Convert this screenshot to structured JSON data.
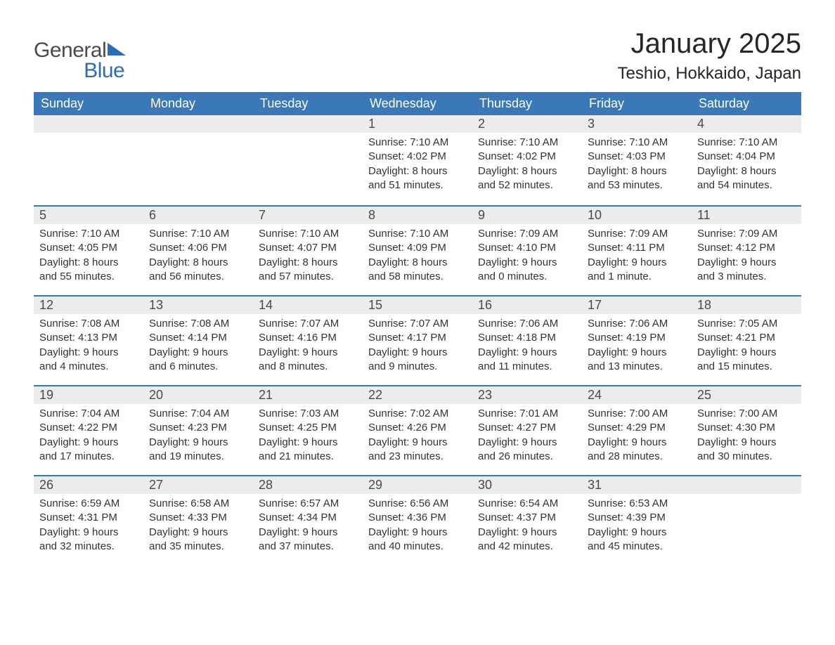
{
  "logo": {
    "general": "General",
    "blue": "Blue"
  },
  "header": {
    "title": "January 2025",
    "location": "Teshio, Hokkaido, Japan"
  },
  "colors": {
    "header_bg": "#3b78b8",
    "header_text": "#ffffff",
    "daynum_bg": "#ececec",
    "row_divider": "#3b78b8",
    "body_text": "#333333",
    "logo_gray": "#4a4a4a",
    "logo_blue": "#2a6db8",
    "page_bg": "#ffffff"
  },
  "weekdays": [
    "Sunday",
    "Monday",
    "Tuesday",
    "Wednesday",
    "Thursday",
    "Friday",
    "Saturday"
  ],
  "weeks": [
    [
      null,
      null,
      null,
      {
        "n": "1",
        "sr": "Sunrise: 7:10 AM",
        "ss": "Sunset: 4:02 PM",
        "d1": "Daylight: 8 hours",
        "d2": "and 51 minutes."
      },
      {
        "n": "2",
        "sr": "Sunrise: 7:10 AM",
        "ss": "Sunset: 4:02 PM",
        "d1": "Daylight: 8 hours",
        "d2": "and 52 minutes."
      },
      {
        "n": "3",
        "sr": "Sunrise: 7:10 AM",
        "ss": "Sunset: 4:03 PM",
        "d1": "Daylight: 8 hours",
        "d2": "and 53 minutes."
      },
      {
        "n": "4",
        "sr": "Sunrise: 7:10 AM",
        "ss": "Sunset: 4:04 PM",
        "d1": "Daylight: 8 hours",
        "d2": "and 54 minutes."
      }
    ],
    [
      {
        "n": "5",
        "sr": "Sunrise: 7:10 AM",
        "ss": "Sunset: 4:05 PM",
        "d1": "Daylight: 8 hours",
        "d2": "and 55 minutes."
      },
      {
        "n": "6",
        "sr": "Sunrise: 7:10 AM",
        "ss": "Sunset: 4:06 PM",
        "d1": "Daylight: 8 hours",
        "d2": "and 56 minutes."
      },
      {
        "n": "7",
        "sr": "Sunrise: 7:10 AM",
        "ss": "Sunset: 4:07 PM",
        "d1": "Daylight: 8 hours",
        "d2": "and 57 minutes."
      },
      {
        "n": "8",
        "sr": "Sunrise: 7:10 AM",
        "ss": "Sunset: 4:09 PM",
        "d1": "Daylight: 8 hours",
        "d2": "and 58 minutes."
      },
      {
        "n": "9",
        "sr": "Sunrise: 7:09 AM",
        "ss": "Sunset: 4:10 PM",
        "d1": "Daylight: 9 hours",
        "d2": "and 0 minutes."
      },
      {
        "n": "10",
        "sr": "Sunrise: 7:09 AM",
        "ss": "Sunset: 4:11 PM",
        "d1": "Daylight: 9 hours",
        "d2": "and 1 minute."
      },
      {
        "n": "11",
        "sr": "Sunrise: 7:09 AM",
        "ss": "Sunset: 4:12 PM",
        "d1": "Daylight: 9 hours",
        "d2": "and 3 minutes."
      }
    ],
    [
      {
        "n": "12",
        "sr": "Sunrise: 7:08 AM",
        "ss": "Sunset: 4:13 PM",
        "d1": "Daylight: 9 hours",
        "d2": "and 4 minutes."
      },
      {
        "n": "13",
        "sr": "Sunrise: 7:08 AM",
        "ss": "Sunset: 4:14 PM",
        "d1": "Daylight: 9 hours",
        "d2": "and 6 minutes."
      },
      {
        "n": "14",
        "sr": "Sunrise: 7:07 AM",
        "ss": "Sunset: 4:16 PM",
        "d1": "Daylight: 9 hours",
        "d2": "and 8 minutes."
      },
      {
        "n": "15",
        "sr": "Sunrise: 7:07 AM",
        "ss": "Sunset: 4:17 PM",
        "d1": "Daylight: 9 hours",
        "d2": "and 9 minutes."
      },
      {
        "n": "16",
        "sr": "Sunrise: 7:06 AM",
        "ss": "Sunset: 4:18 PM",
        "d1": "Daylight: 9 hours",
        "d2": "and 11 minutes."
      },
      {
        "n": "17",
        "sr": "Sunrise: 7:06 AM",
        "ss": "Sunset: 4:19 PM",
        "d1": "Daylight: 9 hours",
        "d2": "and 13 minutes."
      },
      {
        "n": "18",
        "sr": "Sunrise: 7:05 AM",
        "ss": "Sunset: 4:21 PM",
        "d1": "Daylight: 9 hours",
        "d2": "and 15 minutes."
      }
    ],
    [
      {
        "n": "19",
        "sr": "Sunrise: 7:04 AM",
        "ss": "Sunset: 4:22 PM",
        "d1": "Daylight: 9 hours",
        "d2": "and 17 minutes."
      },
      {
        "n": "20",
        "sr": "Sunrise: 7:04 AM",
        "ss": "Sunset: 4:23 PM",
        "d1": "Daylight: 9 hours",
        "d2": "and 19 minutes."
      },
      {
        "n": "21",
        "sr": "Sunrise: 7:03 AM",
        "ss": "Sunset: 4:25 PM",
        "d1": "Daylight: 9 hours",
        "d2": "and 21 minutes."
      },
      {
        "n": "22",
        "sr": "Sunrise: 7:02 AM",
        "ss": "Sunset: 4:26 PM",
        "d1": "Daylight: 9 hours",
        "d2": "and 23 minutes."
      },
      {
        "n": "23",
        "sr": "Sunrise: 7:01 AM",
        "ss": "Sunset: 4:27 PM",
        "d1": "Daylight: 9 hours",
        "d2": "and 26 minutes."
      },
      {
        "n": "24",
        "sr": "Sunrise: 7:00 AM",
        "ss": "Sunset: 4:29 PM",
        "d1": "Daylight: 9 hours",
        "d2": "and 28 minutes."
      },
      {
        "n": "25",
        "sr": "Sunrise: 7:00 AM",
        "ss": "Sunset: 4:30 PM",
        "d1": "Daylight: 9 hours",
        "d2": "and 30 minutes."
      }
    ],
    [
      {
        "n": "26",
        "sr": "Sunrise: 6:59 AM",
        "ss": "Sunset: 4:31 PM",
        "d1": "Daylight: 9 hours",
        "d2": "and 32 minutes."
      },
      {
        "n": "27",
        "sr": "Sunrise: 6:58 AM",
        "ss": "Sunset: 4:33 PM",
        "d1": "Daylight: 9 hours",
        "d2": "and 35 minutes."
      },
      {
        "n": "28",
        "sr": "Sunrise: 6:57 AM",
        "ss": "Sunset: 4:34 PM",
        "d1": "Daylight: 9 hours",
        "d2": "and 37 minutes."
      },
      {
        "n": "29",
        "sr": "Sunrise: 6:56 AM",
        "ss": "Sunset: 4:36 PM",
        "d1": "Daylight: 9 hours",
        "d2": "and 40 minutes."
      },
      {
        "n": "30",
        "sr": "Sunrise: 6:54 AM",
        "ss": "Sunset: 4:37 PM",
        "d1": "Daylight: 9 hours",
        "d2": "and 42 minutes."
      },
      {
        "n": "31",
        "sr": "Sunrise: 6:53 AM",
        "ss": "Sunset: 4:39 PM",
        "d1": "Daylight: 9 hours",
        "d2": "and 45 minutes."
      },
      null
    ]
  ]
}
